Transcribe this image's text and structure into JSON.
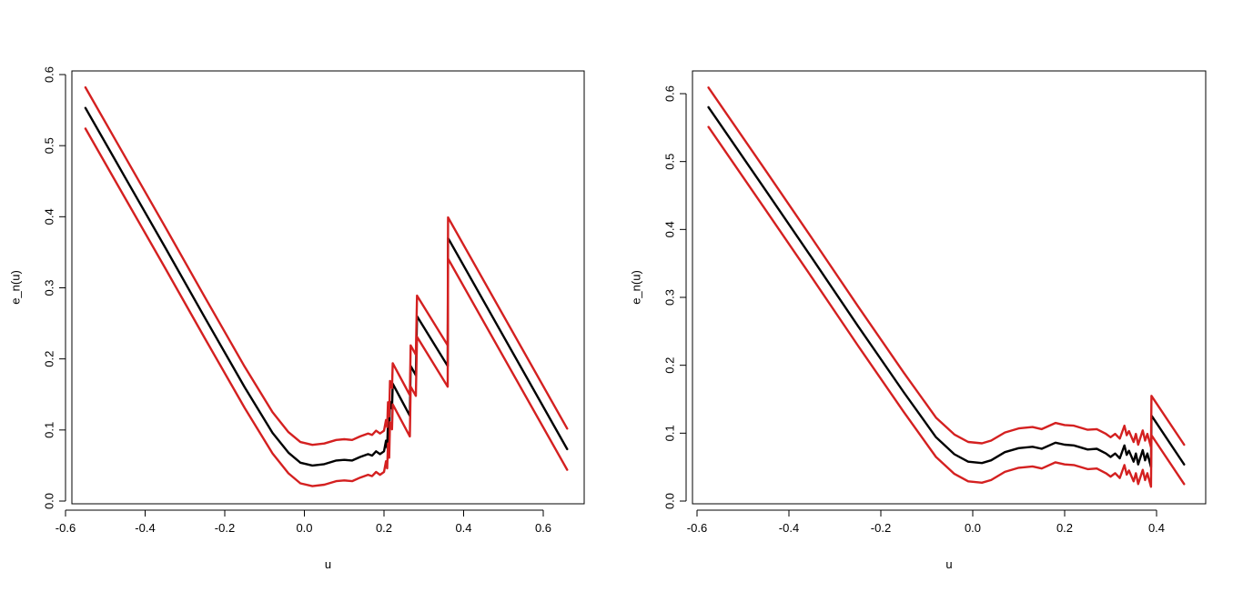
{
  "chart_data": [
    {
      "type": "line",
      "xlabel": "u",
      "ylabel": "e_n(u)",
      "xlim": [
        -0.6,
        0.7
      ],
      "ylim": [
        0.0,
        0.6
      ],
      "x_ticks": [
        -0.6,
        -0.4,
        -0.2,
        0.0,
        0.2,
        0.4,
        0.6
      ],
      "x_tick_labels": [
        "-0.6",
        "-0.4",
        "-0.2",
        "0.0",
        "0.2",
        "0.4",
        "0.6"
      ],
      "y_ticks": [
        0.0,
        0.1,
        0.2,
        0.3,
        0.4,
        0.5,
        0.6
      ],
      "y_tick_labels": [
        "0.0",
        "0.1",
        "0.2",
        "0.3",
        "0.4",
        "0.5",
        "0.6"
      ],
      "grid": false,
      "band_halfwidth": 0.029,
      "series": [
        {
          "role": "estimate",
          "color": "#000000",
          "points": [
            [
              -0.55,
              0.553
            ],
            [
              -0.45,
              0.455
            ],
            [
              -0.35,
              0.357
            ],
            [
              -0.25,
              0.258
            ],
            [
              -0.15,
              0.16
            ],
            [
              -0.08,
              0.096
            ],
            [
              -0.04,
              0.068
            ],
            [
              -0.01,
              0.054
            ],
            [
              0.02,
              0.05
            ],
            [
              0.05,
              0.052
            ],
            [
              0.08,
              0.057
            ],
            [
              0.1,
              0.058
            ],
            [
              0.12,
              0.057
            ],
            [
              0.14,
              0.062
            ],
            [
              0.16,
              0.066
            ],
            [
              0.17,
              0.064
            ],
            [
              0.18,
              0.07
            ],
            [
              0.19,
              0.066
            ],
            [
              0.2,
              0.07
            ],
            [
              0.205,
              0.085
            ],
            [
              0.208,
              0.075
            ],
            [
              0.21,
              0.11
            ],
            [
              0.213,
              0.09
            ],
            [
              0.215,
              0.14
            ],
            [
              0.22,
              0.13
            ],
            [
              0.222,
              0.165
            ],
            [
              0.265,
              0.12
            ],
            [
              0.267,
              0.19
            ],
            [
              0.28,
              0.177
            ],
            [
              0.283,
              0.26
            ],
            [
              0.36,
              0.19
            ],
            [
              0.361,
              0.37
            ],
            [
              0.66,
              0.073
            ]
          ]
        },
        {
          "role": "upper-bound",
          "color": "#d42020",
          "points": [
            [
              -0.55,
              0.582
            ],
            [
              -0.45,
              0.484
            ],
            [
              -0.35,
              0.386
            ],
            [
              -0.25,
              0.287
            ],
            [
              -0.15,
              0.189
            ],
            [
              -0.08,
              0.125
            ],
            [
              -0.04,
              0.097
            ],
            [
              -0.01,
              0.083
            ],
            [
              0.02,
              0.079
            ],
            [
              0.05,
              0.081
            ],
            [
              0.08,
              0.086
            ],
            [
              0.1,
              0.087
            ],
            [
              0.12,
              0.086
            ],
            [
              0.14,
              0.091
            ],
            [
              0.16,
              0.095
            ],
            [
              0.17,
              0.093
            ],
            [
              0.18,
              0.099
            ],
            [
              0.19,
              0.095
            ],
            [
              0.2,
              0.099
            ],
            [
              0.205,
              0.114
            ],
            [
              0.208,
              0.104
            ],
            [
              0.21,
              0.139
            ],
            [
              0.213,
              0.119
            ],
            [
              0.215,
              0.169
            ],
            [
              0.22,
              0.159
            ],
            [
              0.222,
              0.194
            ],
            [
              0.265,
              0.149
            ],
            [
              0.267,
              0.219
            ],
            [
              0.28,
              0.206
            ],
            [
              0.283,
              0.289
            ],
            [
              0.36,
              0.219
            ],
            [
              0.361,
              0.399
            ],
            [
              0.66,
              0.102
            ]
          ]
        },
        {
          "role": "lower-bound",
          "color": "#d42020",
          "points": [
            [
              -0.55,
              0.524
            ],
            [
              -0.45,
              0.426
            ],
            [
              -0.35,
              0.328
            ],
            [
              -0.25,
              0.229
            ],
            [
              -0.15,
              0.131
            ],
            [
              -0.08,
              0.067
            ],
            [
              -0.04,
              0.039
            ],
            [
              -0.01,
              0.025
            ],
            [
              0.02,
              0.021
            ],
            [
              0.05,
              0.023
            ],
            [
              0.08,
              0.028
            ],
            [
              0.1,
              0.029
            ],
            [
              0.12,
              0.028
            ],
            [
              0.14,
              0.033
            ],
            [
              0.16,
              0.037
            ],
            [
              0.17,
              0.035
            ],
            [
              0.18,
              0.041
            ],
            [
              0.19,
              0.037
            ],
            [
              0.2,
              0.041
            ],
            [
              0.205,
              0.056
            ],
            [
              0.208,
              0.046
            ],
            [
              0.21,
              0.081
            ],
            [
              0.213,
              0.061
            ],
            [
              0.215,
              0.111
            ],
            [
              0.22,
              0.101
            ],
            [
              0.222,
              0.136
            ],
            [
              0.265,
              0.091
            ],
            [
              0.267,
              0.161
            ],
            [
              0.28,
              0.148
            ],
            [
              0.283,
              0.231
            ],
            [
              0.36,
              0.161
            ],
            [
              0.361,
              0.341
            ],
            [
              0.66,
              0.044
            ]
          ]
        }
      ]
    },
    {
      "type": "line",
      "xlabel": "u",
      "ylabel": "e_n(u)",
      "xlim": [
        -0.6,
        0.5
      ],
      "ylim": [
        0.0,
        0.6
      ],
      "x_ticks": [
        -0.6,
        -0.4,
        -0.2,
        0.0,
        0.2,
        0.4
      ],
      "x_tick_labels": [
        "-0.6",
        "-0.4",
        "-0.2",
        "0.0",
        "0.2",
        "0.4"
      ],
      "y_ticks": [
        0.0,
        0.1,
        0.2,
        0.3,
        0.4,
        0.5,
        0.6
      ],
      "y_tick_labels": [
        "0.0",
        "0.1",
        "0.2",
        "0.3",
        "0.4",
        "0.5",
        "0.6"
      ],
      "grid": false,
      "band_halfwidth": 0.029,
      "series": [
        {
          "role": "estimate",
          "color": "#000000",
          "points": [
            [
              -0.575,
              0.58
            ],
            [
              -0.45,
              0.457
            ],
            [
              -0.35,
              0.358
            ],
            [
              -0.25,
              0.258
            ],
            [
              -0.15,
              0.16
            ],
            [
              -0.08,
              0.094
            ],
            [
              -0.04,
              0.069
            ],
            [
              -0.01,
              0.058
            ],
            [
              0.02,
              0.056
            ],
            [
              0.04,
              0.06
            ],
            [
              0.07,
              0.072
            ],
            [
              0.1,
              0.078
            ],
            [
              0.13,
              0.08
            ],
            [
              0.15,
              0.077
            ],
            [
              0.18,
              0.086
            ],
            [
              0.2,
              0.083
            ],
            [
              0.22,
              0.082
            ],
            [
              0.25,
              0.076
            ],
            [
              0.27,
              0.077
            ],
            [
              0.29,
              0.07
            ],
            [
              0.3,
              0.065
            ],
            [
              0.31,
              0.07
            ],
            [
              0.32,
              0.063
            ],
            [
              0.33,
              0.082
            ],
            [
              0.335,
              0.068
            ],
            [
              0.34,
              0.074
            ],
            [
              0.35,
              0.058
            ],
            [
              0.355,
              0.07
            ],
            [
              0.36,
              0.054
            ],
            [
              0.37,
              0.075
            ],
            [
              0.375,
              0.06
            ],
            [
              0.38,
              0.07
            ],
            [
              0.388,
              0.05
            ],
            [
              0.389,
              0.126
            ],
            [
              0.46,
              0.054
            ]
          ]
        },
        {
          "role": "upper-bound",
          "color": "#d42020",
          "points": [
            [
              -0.575,
              0.609
            ],
            [
              -0.45,
              0.486
            ],
            [
              -0.35,
              0.387
            ],
            [
              -0.25,
              0.287
            ],
            [
              -0.15,
              0.189
            ],
            [
              -0.08,
              0.123
            ],
            [
              -0.04,
              0.098
            ],
            [
              -0.01,
              0.087
            ],
            [
              0.02,
              0.085
            ],
            [
              0.04,
              0.089
            ],
            [
              0.07,
              0.101
            ],
            [
              0.1,
              0.107
            ],
            [
              0.13,
              0.109
            ],
            [
              0.15,
              0.106
            ],
            [
              0.18,
              0.115
            ],
            [
              0.2,
              0.112
            ],
            [
              0.22,
              0.111
            ],
            [
              0.25,
              0.105
            ],
            [
              0.27,
              0.106
            ],
            [
              0.29,
              0.099
            ],
            [
              0.3,
              0.094
            ],
            [
              0.31,
              0.099
            ],
            [
              0.32,
              0.092
            ],
            [
              0.33,
              0.111
            ],
            [
              0.335,
              0.097
            ],
            [
              0.34,
              0.103
            ],
            [
              0.35,
              0.087
            ],
            [
              0.355,
              0.099
            ],
            [
              0.36,
              0.083
            ],
            [
              0.37,
              0.104
            ],
            [
              0.375,
              0.089
            ],
            [
              0.38,
              0.099
            ],
            [
              0.388,
              0.079
            ],
            [
              0.389,
              0.155
            ],
            [
              0.46,
              0.083
            ]
          ]
        },
        {
          "role": "lower-bound",
          "color": "#d42020",
          "points": [
            [
              -0.575,
              0.551
            ],
            [
              -0.45,
              0.428
            ],
            [
              -0.35,
              0.329
            ],
            [
              -0.25,
              0.229
            ],
            [
              -0.15,
              0.131
            ],
            [
              -0.08,
              0.065
            ],
            [
              -0.04,
              0.04
            ],
            [
              -0.01,
              0.029
            ],
            [
              0.02,
              0.027
            ],
            [
              0.04,
              0.031
            ],
            [
              0.07,
              0.043
            ],
            [
              0.1,
              0.049
            ],
            [
              0.13,
              0.051
            ],
            [
              0.15,
              0.048
            ],
            [
              0.18,
              0.057
            ],
            [
              0.2,
              0.054
            ],
            [
              0.22,
              0.053
            ],
            [
              0.25,
              0.047
            ],
            [
              0.27,
              0.048
            ],
            [
              0.29,
              0.041
            ],
            [
              0.3,
              0.036
            ],
            [
              0.31,
              0.041
            ],
            [
              0.32,
              0.034
            ],
            [
              0.33,
              0.053
            ],
            [
              0.335,
              0.039
            ],
            [
              0.34,
              0.045
            ],
            [
              0.35,
              0.029
            ],
            [
              0.355,
              0.041
            ],
            [
              0.36,
              0.025
            ],
            [
              0.37,
              0.046
            ],
            [
              0.375,
              0.031
            ],
            [
              0.38,
              0.041
            ],
            [
              0.388,
              0.021
            ],
            [
              0.389,
              0.097
            ],
            [
              0.46,
              0.025
            ]
          ]
        }
      ]
    }
  ]
}
